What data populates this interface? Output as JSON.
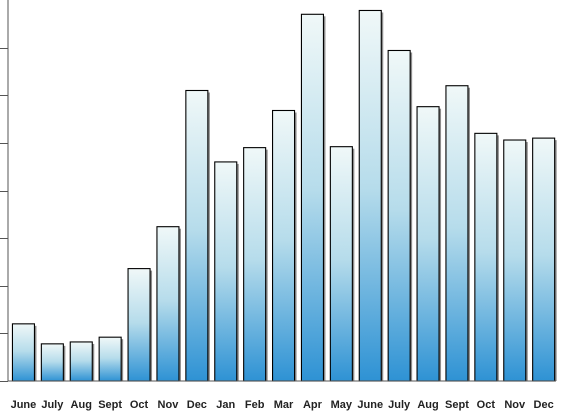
{
  "chart_data": {
    "type": "bar",
    "title": "",
    "xlabel": "",
    "ylabel": "",
    "categories": [
      "June",
      "July",
      "Aug",
      "Sept",
      "Oct",
      "Nov",
      "Dec",
      "Jan",
      "Feb",
      "Mar",
      "Apr",
      "May",
      "June",
      "July",
      "Aug",
      "Sept",
      "Oct",
      "Nov",
      "Dec"
    ],
    "values": [
      0.6,
      0.39,
      0.41,
      0.46,
      1.18,
      1.62,
      3.05,
      2.3,
      2.45,
      2.84,
      3.85,
      2.46,
      3.89,
      3.47,
      2.88,
      3.1,
      2.6,
      2.53,
      2.55
    ],
    "ylim": [
      0,
      4
    ],
    "y_gridlines": [
      0,
      0.5,
      1,
      1.5,
      2,
      2.5,
      3,
      3.5
    ],
    "y_tick_labels_shown": false,
    "grid": false,
    "legend": "none",
    "colors": {
      "bar_top": "#f0f8f8",
      "bar_mid": "#b6dceb",
      "bar_bottom": "#2e92d4",
      "bar_outline": "#000000",
      "shadow": "#8c8c8c",
      "axis": "#555555"
    }
  }
}
